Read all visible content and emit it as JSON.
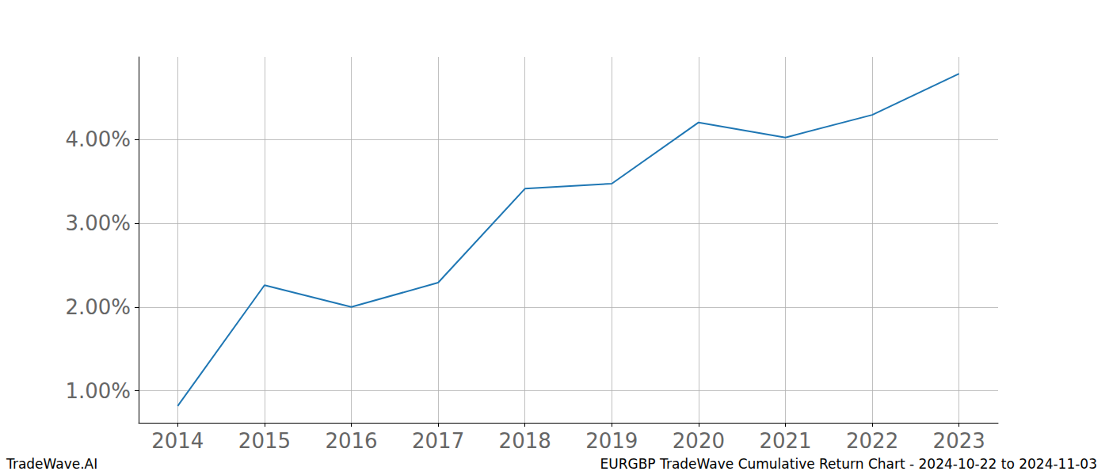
{
  "chart_data": {
    "type": "line",
    "title": "EURGBP TradeWave Cumulative Return Chart - 2024-10-22 to 2024-11-03",
    "annotations": [
      "TradeWave.AI"
    ],
    "x": [
      2014,
      2015,
      2016,
      2017,
      2018,
      2019,
      2020,
      2021,
      2022,
      2023
    ],
    "values": [
      0.82,
      2.26,
      2.0,
      2.29,
      3.41,
      3.47,
      4.2,
      4.02,
      4.29,
      4.78
    ],
    "color": "#1f77b4",
    "xlim": [
      2013.55,
      2023.45
    ],
    "xticks": [
      2014,
      2015,
      2016,
      2017,
      2018,
      2019,
      2020,
      2021,
      2022,
      2023
    ],
    "ylim": [
      0.62,
      4.98
    ],
    "yticks": [
      {
        "value": 1,
        "label": "1.00%"
      },
      {
        "value": 2,
        "label": "2.00%"
      },
      {
        "value": 3,
        "label": "3.00%"
      },
      {
        "value": 4,
        "label": "4.00%"
      }
    ],
    "grid": true
  }
}
